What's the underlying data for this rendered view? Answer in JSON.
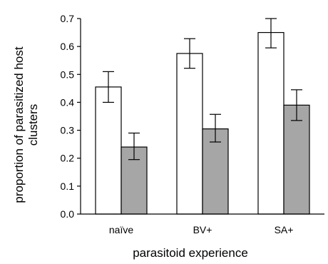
{
  "chart_data": {
    "type": "bar",
    "title": "",
    "xlabel": "parasitoid experience",
    "ylabel_line1": "proportion of parasitized host",
    "ylabel_line2": "clusters",
    "ylim": [
      0,
      0.7
    ],
    "yticks": [
      "0.0",
      "0.1",
      "0.2",
      "0.3",
      "0.4",
      "0.5",
      "0.6",
      "0.7"
    ],
    "categories": [
      "naïve",
      "BV+",
      "SA+"
    ],
    "grid": false,
    "legend": "none",
    "series": [
      {
        "color": "#ffffff",
        "values": [
          0.455,
          0.575,
          0.65
        ],
        "err_low": [
          0.4,
          0.522,
          0.595
        ],
        "err_high": [
          0.51,
          0.628,
          0.7
        ]
      },
      {
        "color": "#a6a6a6",
        "values": [
          0.24,
          0.305,
          0.39
        ],
        "err_low": [
          0.195,
          0.258,
          0.335
        ],
        "err_high": [
          0.29,
          0.357,
          0.445
        ]
      }
    ]
  }
}
